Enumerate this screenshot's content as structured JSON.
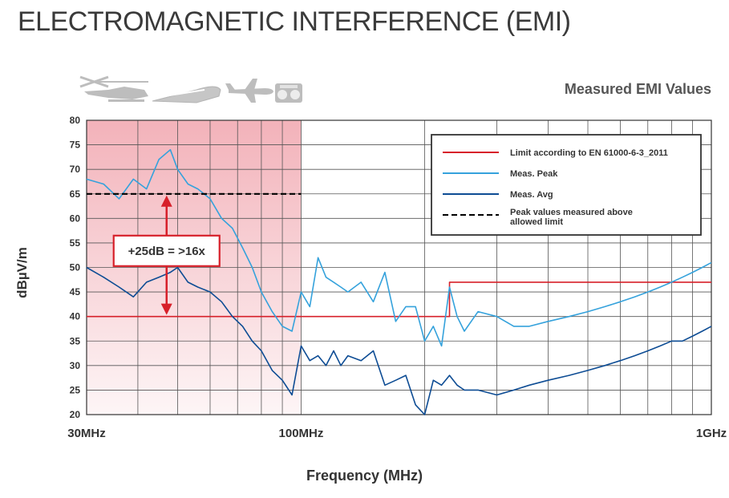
{
  "page": {
    "title": "ELECTROMAGNETIC INTERFERENCE (EMI)"
  },
  "icons": [
    "helicopter-icon",
    "train-icon",
    "airplane-icon",
    "radio-icon"
  ],
  "chart_data": {
    "type": "line",
    "title": "Measured EMI Values",
    "xlabel": "Frequency (MHz)",
    "ylabel": "dBµV/m",
    "xscale": "log",
    "xlim": [
      30,
      1000
    ],
    "ylim": [
      20,
      80
    ],
    "yticks": [
      20,
      25,
      30,
      35,
      40,
      45,
      50,
      55,
      60,
      65,
      70,
      75,
      80
    ],
    "xticks": [
      {
        "value": 30,
        "label": "30MHz"
      },
      {
        "value": 100,
        "label": "100MHz"
      },
      {
        "value": 1000,
        "label": "1GHz"
      }
    ],
    "grid": true,
    "legend_position": "top-right",
    "colors": {
      "limit": "#d7202a",
      "peak": "#35a2dc",
      "avg": "#0d4c94",
      "exceed": "#000000",
      "shade": "#f3b6bd"
    },
    "series": [
      {
        "name": "Limit according to EN 61000-6-3_2011",
        "style": "solid",
        "color": "#d7202a",
        "x": [
          30,
          230,
          230,
          1000
        ],
        "y": [
          40,
          40,
          47,
          47
        ]
      },
      {
        "name": "Meas. Peak",
        "style": "solid",
        "color": "#35a2dc",
        "x": [
          30,
          33,
          36,
          39,
          42,
          45,
          48,
          50,
          53,
          56,
          60,
          64,
          68,
          72,
          76,
          80,
          85,
          90,
          95,
          100,
          105,
          110,
          115,
          120,
          125,
          130,
          140,
          150,
          160,
          170,
          180,
          190,
          200,
          210,
          220,
          230,
          240,
          250,
          270,
          300,
          330,
          360,
          400,
          450,
          500,
          550,
          600,
          650,
          700,
          750,
          800,
          850,
          900,
          950,
          1000
        ],
        "y": [
          68,
          67,
          64,
          68,
          66,
          72,
          74,
          70,
          67,
          66,
          64,
          60,
          58,
          54,
          50,
          45,
          41,
          38,
          37,
          45,
          42,
          52,
          48,
          47,
          46,
          45,
          47,
          43,
          49,
          39,
          42,
          42,
          35,
          38,
          34,
          46,
          40,
          37,
          41,
          40,
          38,
          38,
          39,
          40,
          41,
          42,
          43,
          44,
          45,
          46,
          47,
          48,
          49,
          50,
          51
        ]
      },
      {
        "name": "Meas. Avg",
        "style": "solid",
        "color": "#0d4c94",
        "x": [
          30,
          33,
          36,
          39,
          42,
          45,
          48,
          50,
          53,
          56,
          60,
          64,
          68,
          72,
          76,
          80,
          85,
          90,
          95,
          100,
          105,
          110,
          115,
          120,
          125,
          130,
          140,
          150,
          160,
          170,
          180,
          190,
          200,
          210,
          220,
          230,
          240,
          250,
          270,
          300,
          330,
          360,
          400,
          450,
          500,
          550,
          600,
          650,
          700,
          750,
          800,
          850,
          900,
          950,
          1000
        ],
        "y": [
          50,
          48,
          46,
          44,
          47,
          48,
          49,
          50,
          47,
          46,
          45,
          43,
          40,
          38,
          35,
          33,
          29,
          27,
          24,
          34,
          31,
          32,
          30,
          33,
          30,
          32,
          31,
          33,
          26,
          27,
          28,
          22,
          20,
          27,
          26,
          28,
          26,
          25,
          25,
          24,
          25,
          26,
          27,
          28,
          29,
          30,
          31,
          32,
          33,
          34,
          35,
          35,
          36,
          37,
          38
        ]
      },
      {
        "name": "Peak values measured above allowed limit",
        "style": "dashed",
        "color": "#000000",
        "x": [
          30,
          100
        ],
        "y": [
          65,
          65
        ]
      }
    ],
    "shaded_region": {
      "x": [
        30,
        100
      ],
      "y": [
        20,
        80
      ]
    },
    "annotation": {
      "text": "+25dB = >16x",
      "x": 47,
      "y_from": 40,
      "y_to": 65
    }
  }
}
